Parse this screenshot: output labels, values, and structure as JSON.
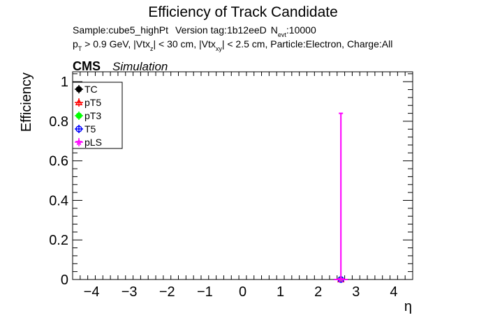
{
  "title": "Efficiency of Track Candidate",
  "info_line1": {
    "sample": "Sample:cube5_highPt",
    "version": "Version tag:1b12eeD",
    "nevt_prefix": "N",
    "nevt_sub": "evt",
    "nevt_value": ":10000"
  },
  "info_line2": {
    "p": "p",
    "p_sub": "T",
    "part1": " > 0.9 GeV, |Vtx",
    "vtx_z_sub": "z",
    "part2": "| < 30 cm, |Vtx",
    "vtx_xy_sub": "xy",
    "part3": "| < 2.5 cm, Particle:Electron, Charge:All"
  },
  "cms_label": "CMS",
  "simulation_label": "Simulation",
  "colors": {
    "TC": "#000000",
    "pT5": "#ff0000",
    "pT3": "#00ff00",
    "T5": "#0000ff",
    "pLS": "#ff00ff"
  },
  "chart_data": {
    "type": "scatter",
    "title": "Efficiency of Track Candidate",
    "xlabel": "η",
    "ylabel": "Efficiency",
    "xlim": [
      -4.5,
      4.5
    ],
    "ylim": [
      0,
      1.05
    ],
    "x_ticks": [
      -4,
      -3,
      -2,
      -1,
      0,
      1,
      2,
      3,
      4
    ],
    "x_tick_labels": [
      "−4",
      "−3",
      "−2",
      "−1",
      "0",
      "1",
      "2",
      "3",
      "4"
    ],
    "y_ticks": [
      0,
      0.2,
      0.4,
      0.6,
      0.8,
      1
    ],
    "y_tick_labels": [
      "0",
      "0.2",
      "0.4",
      "0.6",
      "0.8",
      "1"
    ],
    "legend_position": "top-left",
    "series": [
      {
        "name": "TC",
        "color": "#000000",
        "marker": "circle",
        "points": [
          {
            "x": 2.6,
            "y": 0,
            "yerr_up": 0
          }
        ]
      },
      {
        "name": "pT5",
        "color": "#ff0000",
        "marker": "triangle",
        "points": [
          {
            "x": 2.6,
            "y": 0,
            "yerr_up": 0
          }
        ]
      },
      {
        "name": "pT3",
        "color": "#00ff00",
        "marker": "circle",
        "points": [
          {
            "x": 2.6,
            "y": 0,
            "yerr_up": 0
          }
        ]
      },
      {
        "name": "T5",
        "color": "#0000ff",
        "marker": "circle-open",
        "points": [
          {
            "x": 2.6,
            "y": 0,
            "yerr_up": 0
          }
        ]
      },
      {
        "name": "pLS",
        "color": "#ff00ff",
        "marker": "star",
        "points": [
          {
            "x": 2.6,
            "y": 0,
            "yerr_up": 0.84
          }
        ]
      }
    ]
  }
}
